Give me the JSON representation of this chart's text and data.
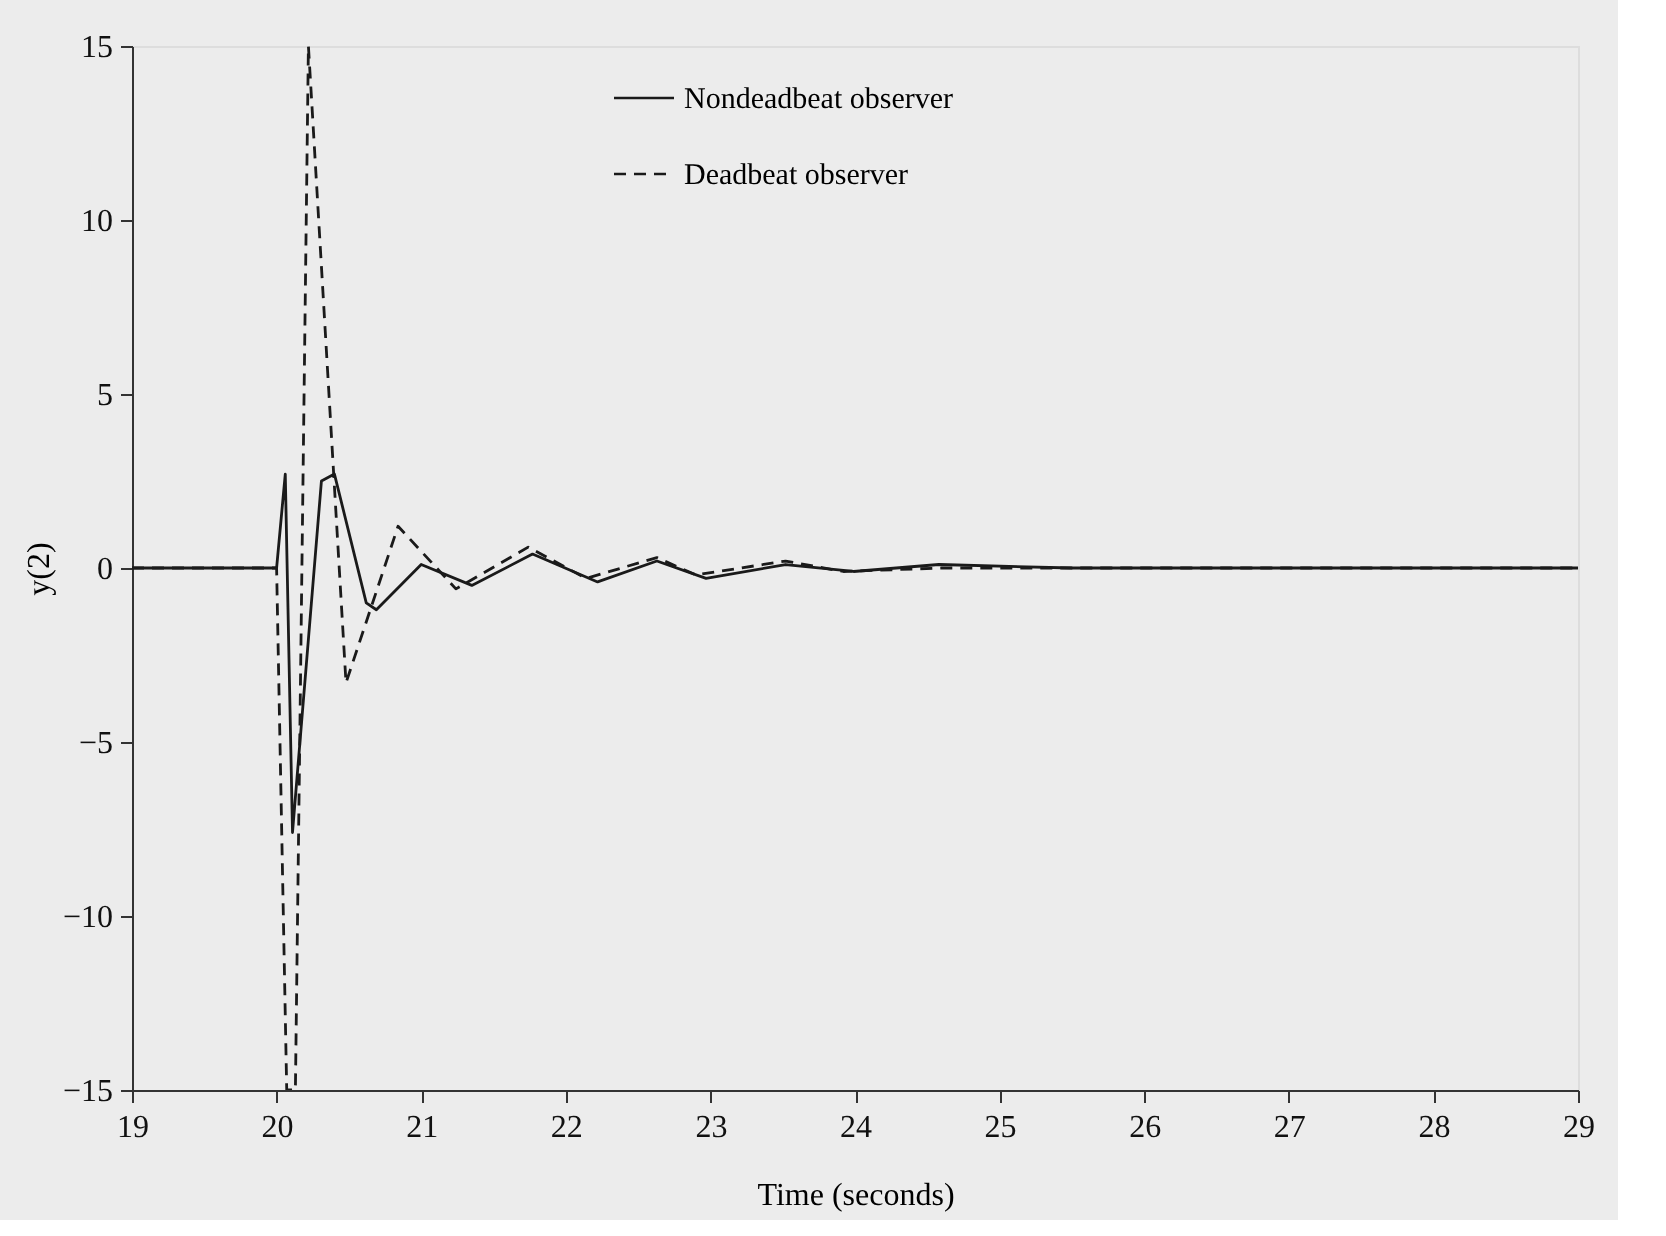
{
  "chart_data": {
    "type": "line",
    "xlabel": "Time (seconds)",
    "ylabel": "y(2)",
    "xlim": [
      19,
      29
    ],
    "ylim": [
      -15,
      15
    ],
    "xticks": [
      19,
      20,
      21,
      22,
      23,
      24,
      25,
      26,
      27,
      28,
      29
    ],
    "yticks": [
      -15,
      -10,
      -5,
      0,
      5,
      10,
      15
    ],
    "grid": false,
    "legend": "top",
    "marker": "none",
    "series": [
      {
        "name": "Nondeadbeat observer",
        "color": "#1a1a1a",
        "line_style": "solid",
        "x": [
          19,
          20,
          20.06,
          20.11,
          20.31,
          20.4,
          20.62,
          20.69,
          21.0,
          21.35,
          21.77,
          22.22,
          22.63,
          22.97,
          23.52,
          23.99,
          24.58,
          25.5,
          29
        ],
        "values": [
          0,
          0,
          2.7,
          -7.6,
          2.5,
          2.7,
          -1.0,
          -1.2,
          0.1,
          -0.5,
          0.4,
          -0.4,
          0.2,
          -0.3,
          0.1,
          -0.1,
          0.1,
          0,
          0
        ]
      },
      {
        "name": "Deadbeat observer",
        "color": "#1a1a1a",
        "line_style": "dashed",
        "x": [
          19,
          20,
          20.07,
          20.13,
          20.22,
          20.48,
          20.84,
          21.24,
          21.74,
          22.14,
          22.63,
          22.9,
          23.52,
          23.92,
          24.6,
          29
        ],
        "values": [
          0,
          0,
          -15,
          -15,
          15,
          -3.3,
          1.2,
          -0.6,
          0.6,
          -0.3,
          0.3,
          -0.2,
          0.2,
          -0.1,
          0,
          0
        ]
      }
    ]
  }
}
